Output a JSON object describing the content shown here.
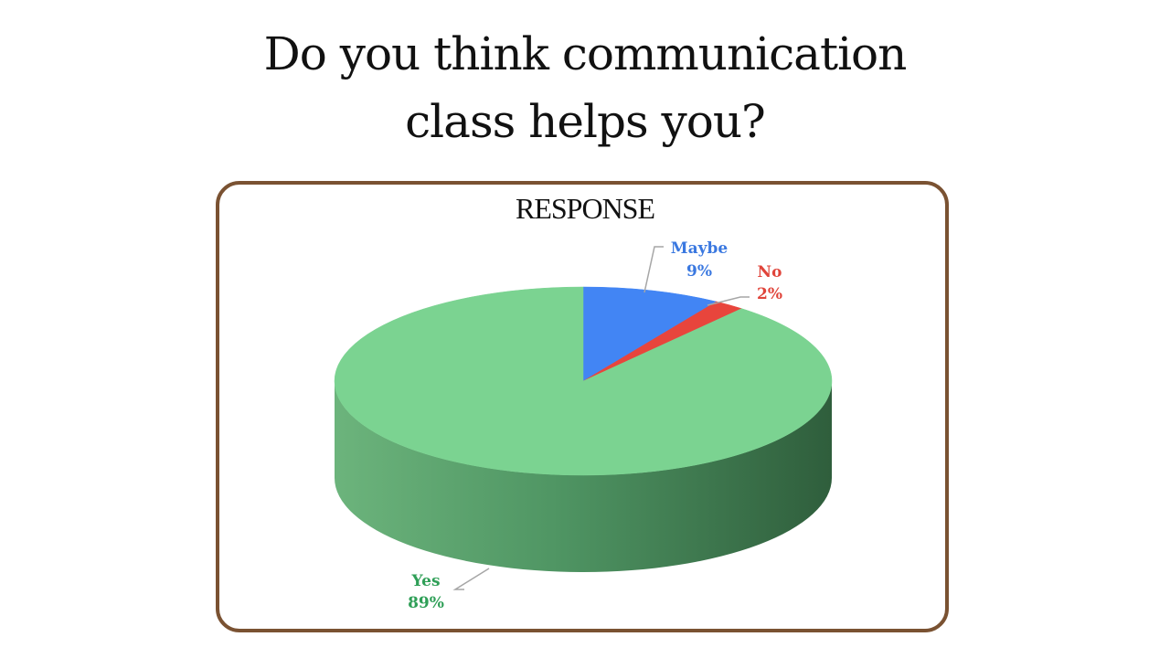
{
  "slide": {
    "title_line1": "Do you think communication",
    "title_line2": "class helps you?"
  },
  "chart_data": {
    "type": "pie",
    "title": "RESPONSE",
    "slices": [
      {
        "label": "Maybe",
        "value": 9,
        "percent_label": "9%",
        "color": "#4285f4"
      },
      {
        "label": "No",
        "value": 2,
        "percent_label": "2%",
        "color": "#e8453c"
      },
      {
        "label": "Yes",
        "value": 89,
        "percent_label": "89%",
        "color": "#7bd391"
      }
    ],
    "start_angle_deg": 0,
    "direction": "clockwise",
    "style": "3d",
    "label_colors": {
      "Maybe": "#3a78e0",
      "No": "#e0443a",
      "Yes": "#2f9f57"
    }
  }
}
